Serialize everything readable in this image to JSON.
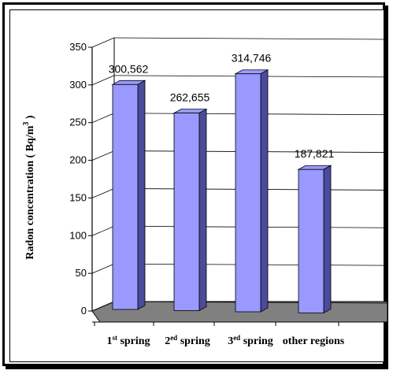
{
  "chart_data": {
    "type": "bar",
    "categories": [
      {
        "base": "1",
        "sup": "st",
        "rest": " spring"
      },
      {
        "base": "2",
        "sup": "ed",
        "rest": " spring"
      },
      {
        "base": "3",
        "sup": "ed",
        "rest": "  spring"
      },
      {
        "base": "other regions",
        "sup": "",
        "rest": ""
      }
    ],
    "values": [
      300.562,
      262.655,
      314.746,
      187.821
    ],
    "value_labels": [
      "300,562",
      "262,655",
      "314,746",
      "187,821"
    ],
    "ylabel": {
      "main": "Radon concentration ( Bq/m",
      "sup": "3",
      "tail": " )"
    },
    "ylim": [
      0,
      350
    ],
    "yticks": [
      0,
      50,
      100,
      150,
      200,
      250,
      300,
      350
    ],
    "bar_color": "#9999ff",
    "bar_side_color": "#4b4b9c",
    "floor_color": "#808080",
    "grid": true
  }
}
